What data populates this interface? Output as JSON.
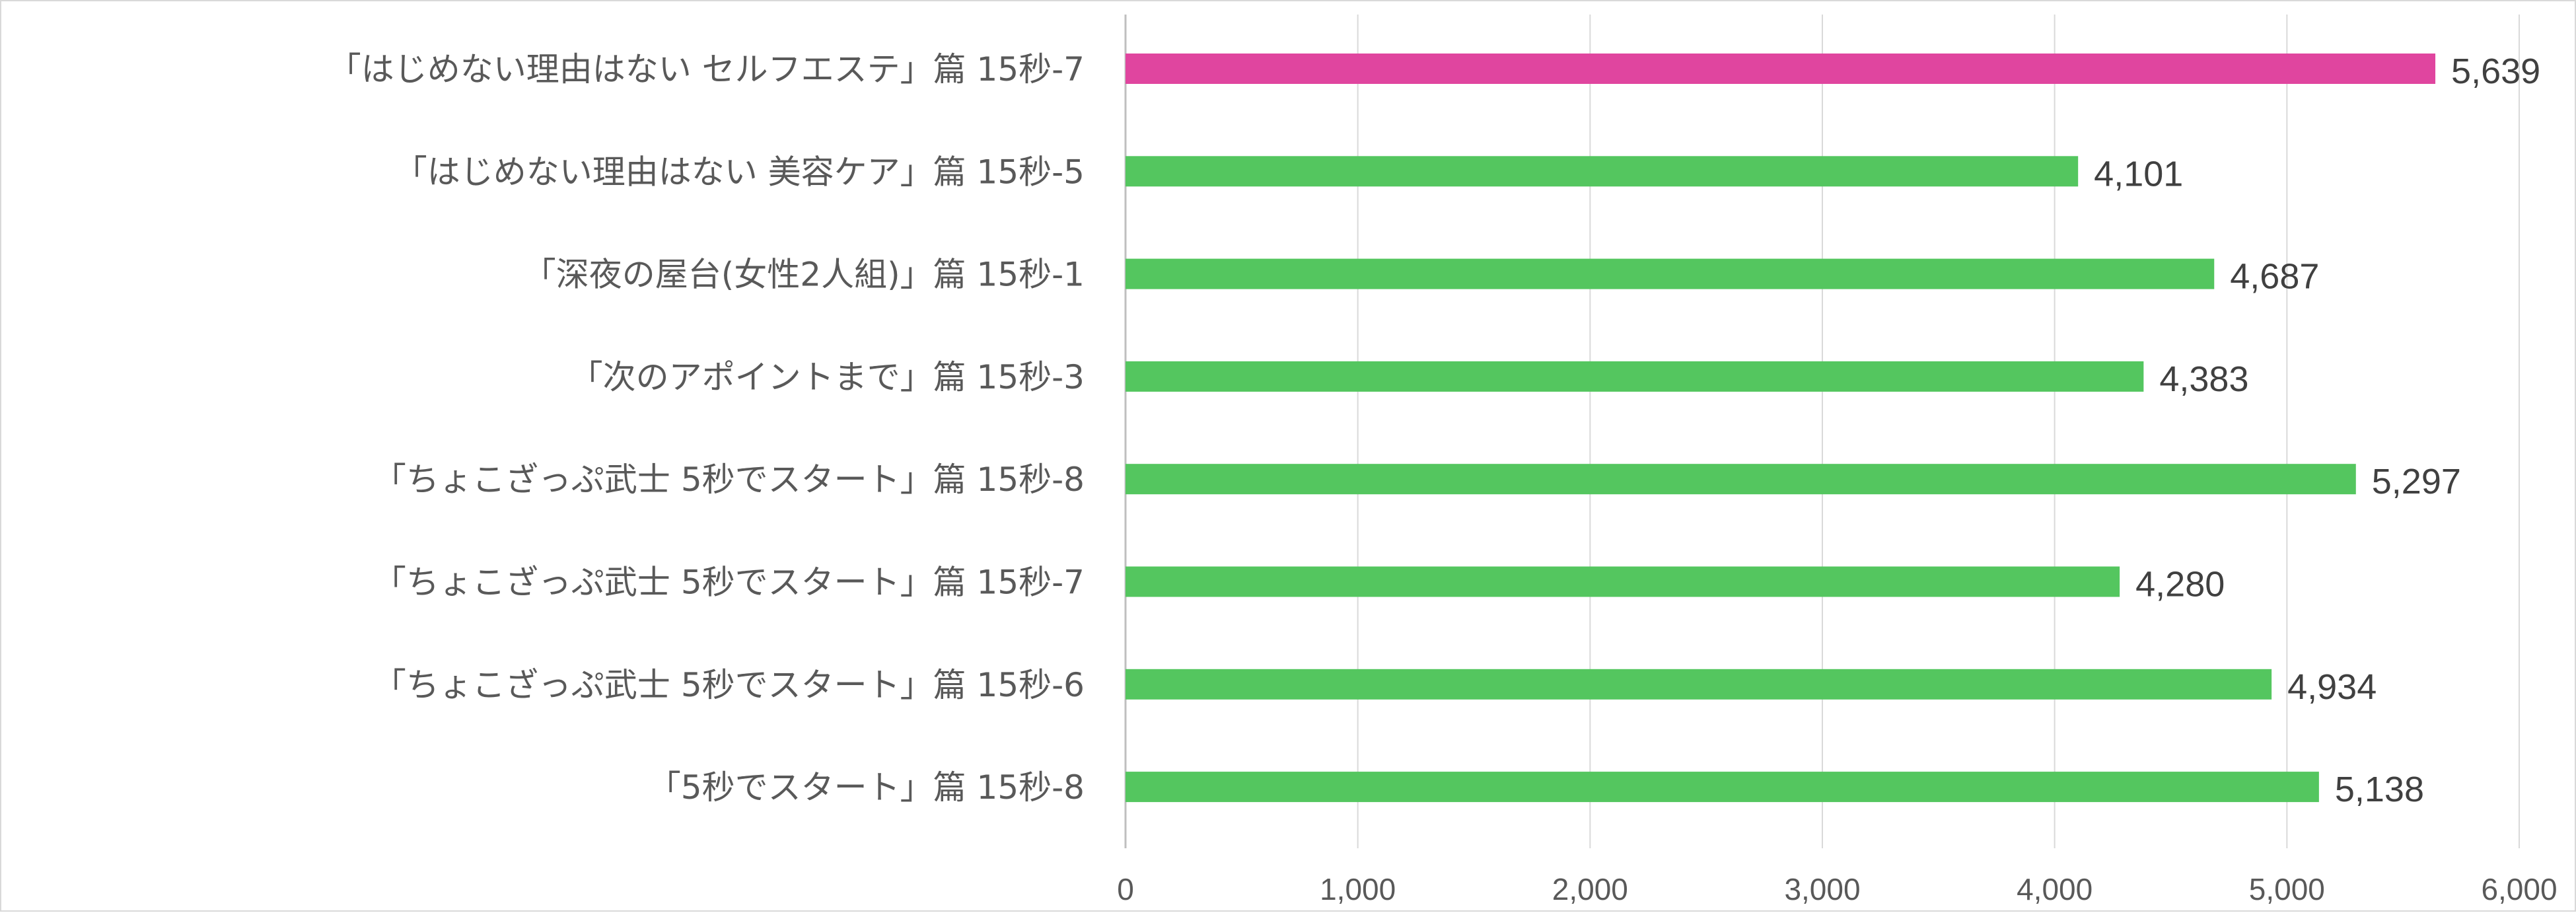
{
  "chart_data": {
    "type": "bar",
    "orientation": "horizontal",
    "categories": [
      "「はじめない理由はない セルフエステ」篇 15秒-7",
      "「はじめない理由はない 美容ケア」篇 15秒-5",
      "「深夜の屋台(女性2人組)」篇 15秒-1",
      "「次のアポイントまで」篇 15秒-3",
      "「ちょこざっぷ武士 5秒でスタート」篇 15秒-8",
      "「ちょこざっぷ武士 5秒でスタート」篇 15秒-7",
      "「ちょこざっぷ武士 5秒でスタート」篇 15秒-6",
      "「5秒でスタート」篇 15秒-8"
    ],
    "values": [
      5639,
      4101,
      4687,
      4383,
      5297,
      4280,
      4934,
      5138
    ],
    "value_labels": [
      "5,639",
      "4,101",
      "4,687",
      "4,383",
      "5,297",
      "4,280",
      "4,934",
      "5,138"
    ],
    "bar_colors": [
      "#e0459f",
      "#54c65f",
      "#54c65f",
      "#54c65f",
      "#54c65f",
      "#54c65f",
      "#54c65f",
      "#54c65f"
    ],
    "xlim": [
      0,
      6000
    ],
    "xticks": [
      0,
      1000,
      2000,
      3000,
      4000,
      5000,
      6000
    ],
    "xtick_labels": [
      "0",
      "1,000",
      "2,000",
      "3,000",
      "4,000",
      "5,000",
      "6,000"
    ],
    "grid": "vertical",
    "title": "",
    "xlabel": "",
    "ylabel": ""
  }
}
